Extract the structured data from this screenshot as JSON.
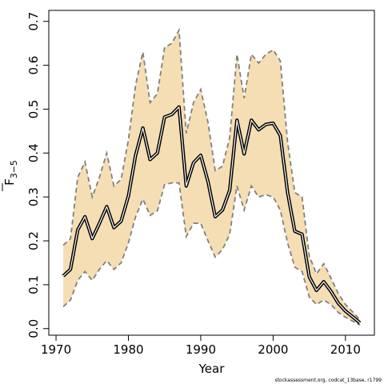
{
  "chart_data": {
    "type": "line",
    "xlabel": "Year",
    "ylabel_main": "F",
    "ylabel_sub": "3−5",
    "xlim": [
      1969,
      2014
    ],
    "ylim": [
      -0.015,
      0.725
    ],
    "xticks": [
      1970,
      1980,
      1990,
      2000,
      2010
    ],
    "yticks": [
      0.0,
      0.1,
      0.2,
      0.3,
      0.4,
      0.5,
      0.6,
      0.7
    ],
    "ytick_labels": [
      "0.0",
      "0.1",
      "0.2",
      "0.3",
      "0.4",
      "0.5",
      "0.6",
      "0.7"
    ],
    "grid": false,
    "band_color": "#f5deb3",
    "line_color": "#000000",
    "bound_color": "#808080",
    "x": [
      1971,
      1972,
      1973,
      1974,
      1975,
      1976,
      1977,
      1978,
      1979,
      1980,
      1981,
      1982,
      1983,
      1984,
      1985,
      1986,
      1987,
      1988,
      1989,
      1990,
      1991,
      1992,
      1993,
      1994,
      1995,
      1996,
      1997,
      1998,
      1999,
      2000,
      2001,
      2002,
      2003,
      2004,
      2005,
      2006,
      2007,
      2008,
      2009,
      2010,
      2011,
      2012
    ],
    "series": [
      {
        "values": [
          0.12,
          0.135,
          0.225,
          0.255,
          0.205,
          0.24,
          0.278,
          0.23,
          0.245,
          0.302,
          0.395,
          0.457,
          0.385,
          0.4,
          0.482,
          0.488,
          0.505,
          0.325,
          0.378,
          0.395,
          0.335,
          0.255,
          0.27,
          0.315,
          0.475,
          0.398,
          0.475,
          0.453,
          0.465,
          0.468,
          0.44,
          0.31,
          0.222,
          0.215,
          0.118,
          0.087,
          0.107,
          0.085,
          0.058,
          0.04,
          0.027,
          0.013
        ]
      },
      {
        "values": [
          0.19,
          0.205,
          0.345,
          0.38,
          0.3,
          0.345,
          0.4,
          0.325,
          0.34,
          0.43,
          0.555,
          0.63,
          0.515,
          0.535,
          0.64,
          0.65,
          0.68,
          0.445,
          0.515,
          0.545,
          0.47,
          0.36,
          0.37,
          0.435,
          0.625,
          0.525,
          0.625,
          0.605,
          0.625,
          0.635,
          0.61,
          0.425,
          0.31,
          0.3,
          0.165,
          0.125,
          0.148,
          0.115,
          0.08,
          0.055,
          0.038,
          0.02
        ]
      },
      {
        "values": [
          0.05,
          0.065,
          0.11,
          0.13,
          0.11,
          0.135,
          0.155,
          0.135,
          0.15,
          0.195,
          0.255,
          0.295,
          0.258,
          0.268,
          0.328,
          0.332,
          0.332,
          0.21,
          0.24,
          0.24,
          0.2,
          0.163,
          0.18,
          0.215,
          0.325,
          0.27,
          0.325,
          0.3,
          0.305,
          0.3,
          0.27,
          0.195,
          0.14,
          0.13,
          0.072,
          0.055,
          0.065,
          0.055,
          0.037,
          0.026,
          0.017,
          0.008
        ]
      }
    ]
  },
  "footer": {
    "credit": "stockassessment.org, codcat_13base, r1799"
  }
}
